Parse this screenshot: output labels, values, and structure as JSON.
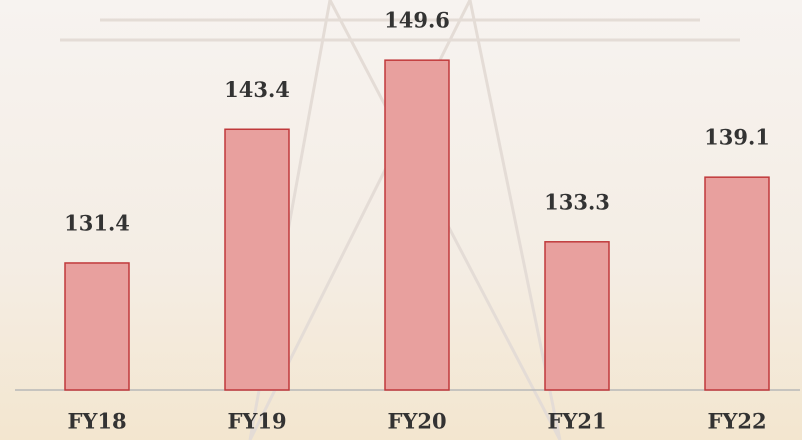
{
  "chart_data": {
    "type": "bar",
    "categories": [
      "FY18",
      "FY19",
      "FY20",
      "FY21",
      "FY22"
    ],
    "values": [
      131.4,
      143.4,
      149.6,
      133.3,
      139.1
    ],
    "color": "#e8a09e",
    "edge_color": "#c0393b",
    "ylim": [
      120,
      155
    ]
  }
}
